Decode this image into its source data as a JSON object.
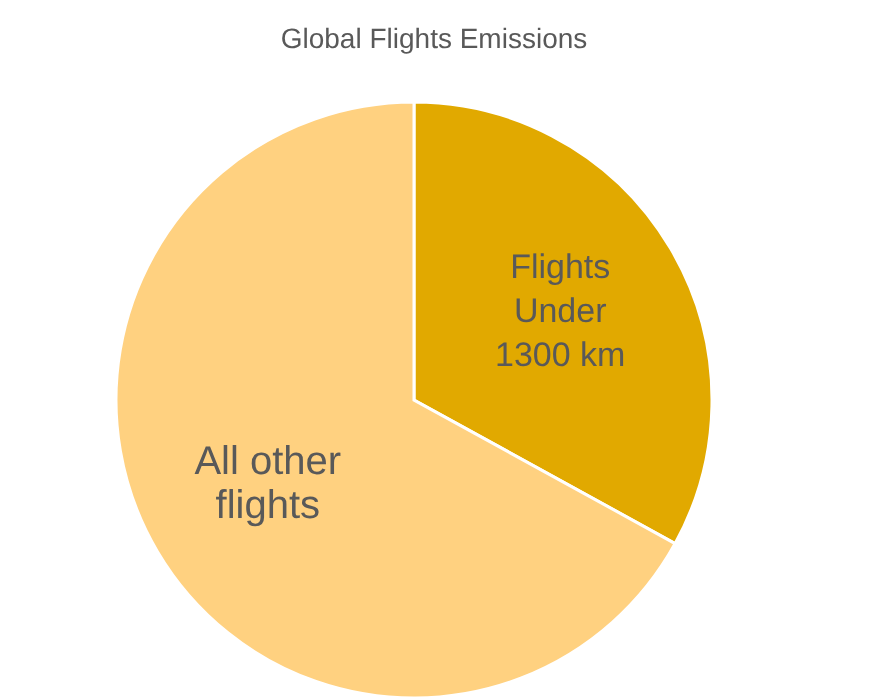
{
  "chart_data": {
    "type": "pie",
    "title": "Global Flights Emissions",
    "categories": [
      "Flights Under 1300 km",
      "All other flights"
    ],
    "values": [
      33,
      67
    ],
    "colors": [
      "#e1a900",
      "#ffd180"
    ]
  }
}
